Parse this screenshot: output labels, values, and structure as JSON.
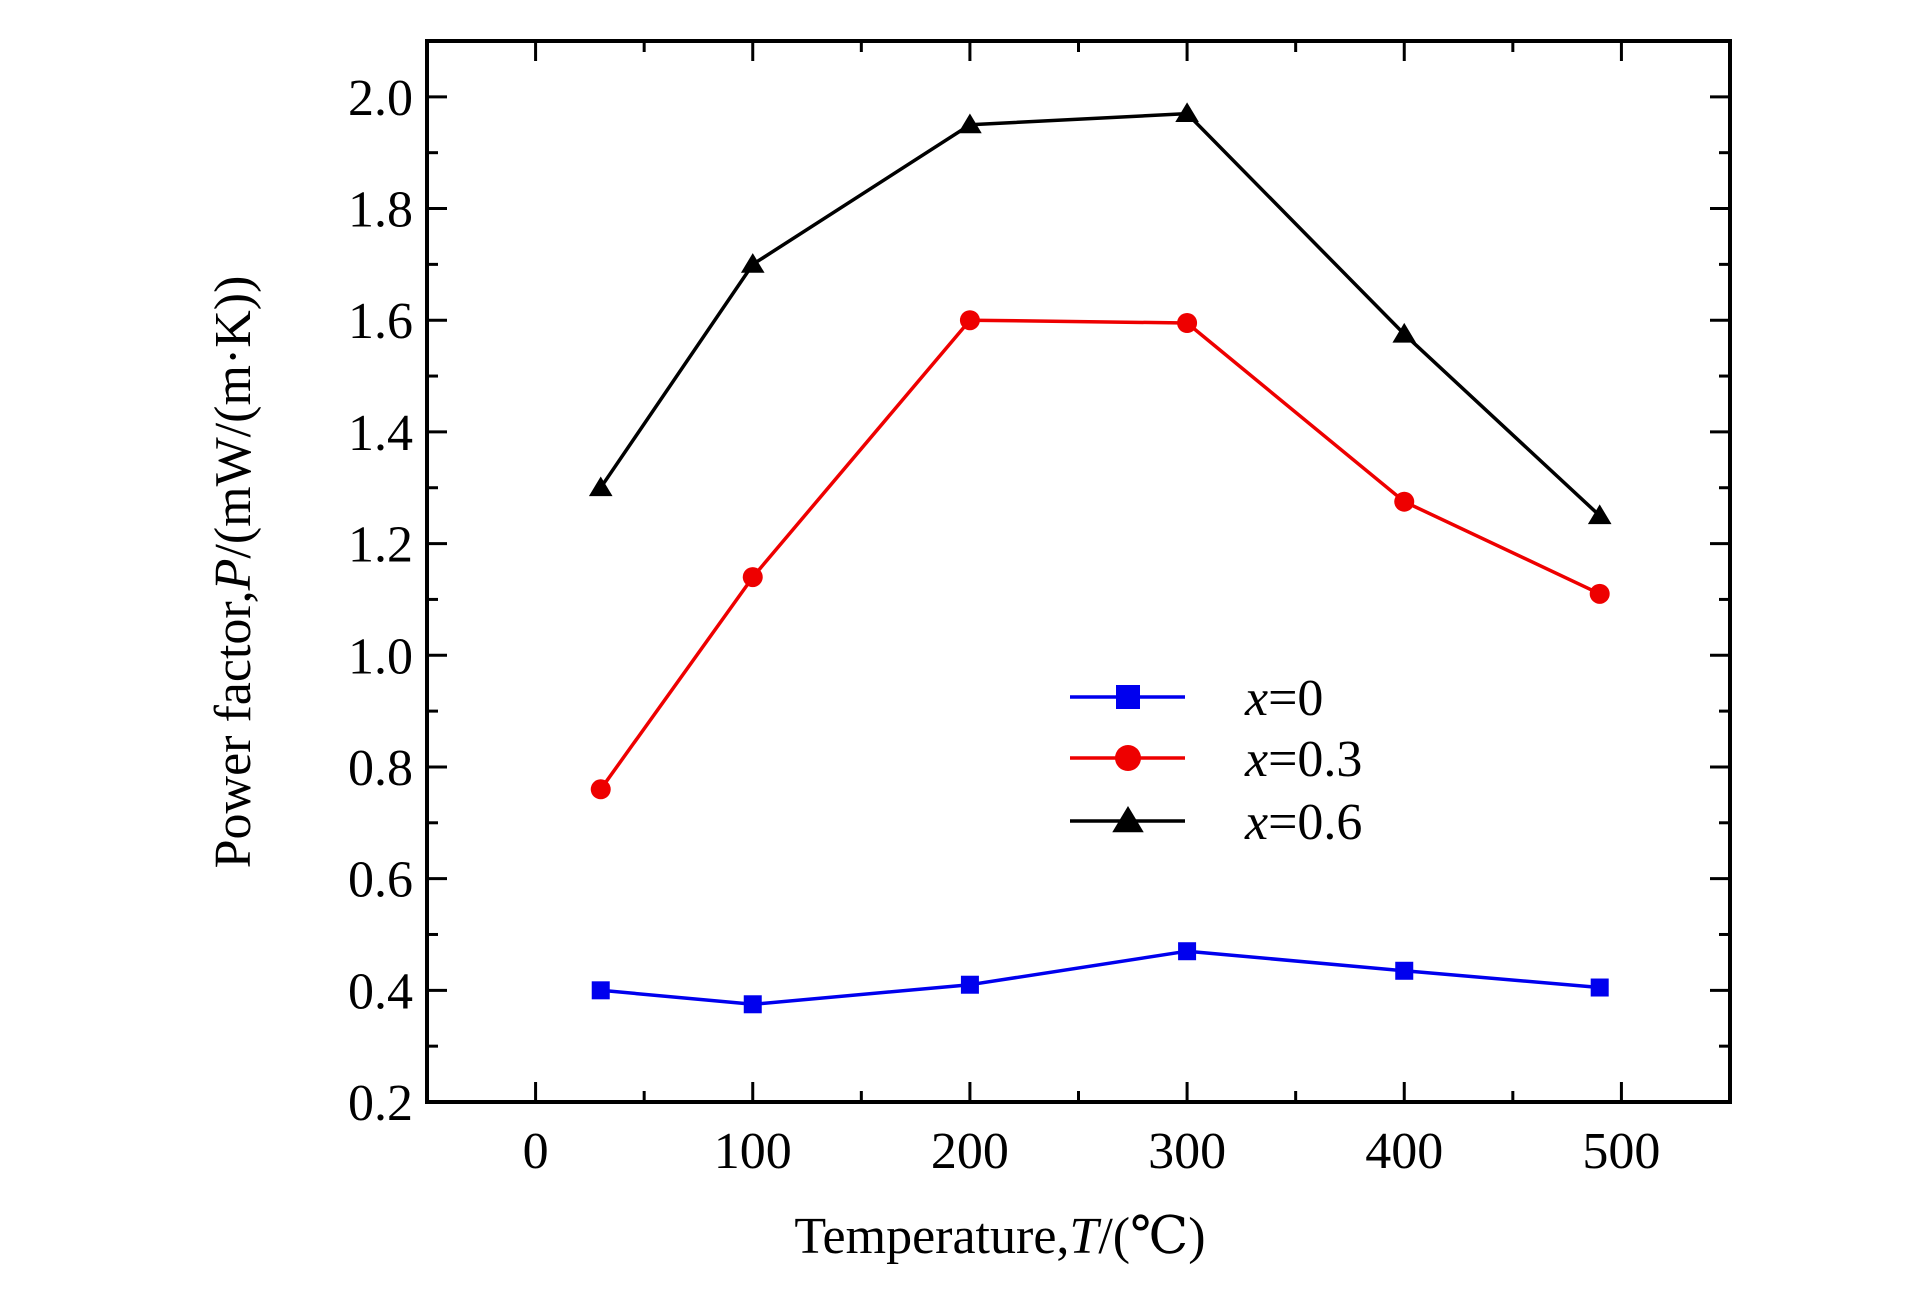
{
  "chart_data": {
    "type": "line",
    "title": "",
    "xlabel_parts": [
      "Temperature,",
      "T",
      "/(℃)"
    ],
    "ylabel_parts": [
      "Power factor,",
      "P",
      "/(mW/(m·K))"
    ],
    "xlim": [
      -50,
      550
    ],
    "ylim": [
      0.2,
      2.1
    ],
    "xticks": [
      0,
      100,
      200,
      300,
      400,
      500
    ],
    "xtick_labels": [
      "0",
      "100",
      "200",
      "300",
      "400",
      "500"
    ],
    "xminor": [
      -50,
      50,
      150,
      250,
      350,
      450,
      550
    ],
    "yticks": [
      0.2,
      0.4,
      0.6,
      0.8,
      1.0,
      1.2,
      1.4,
      1.6,
      1.8,
      2.0
    ],
    "ytick_labels": [
      "0.2",
      "0.4",
      "0.6",
      "0.8",
      "1.0",
      "1.2",
      "1.4",
      "1.6",
      "1.8",
      "2.0"
    ],
    "yminor": [
      0.3,
      0.5,
      0.7,
      0.9,
      1.1,
      1.3,
      1.5,
      1.7,
      1.9
    ],
    "grid": false,
    "legend_position": "center-right",
    "x": [
      30,
      100,
      200,
      300,
      400,
      490
    ],
    "series": [
      {
        "name": "x=0",
        "label_var": "x",
        "label_rest": "=0",
        "color": "#0000ee",
        "marker": "square",
        "values": [
          0.4,
          0.375,
          0.41,
          0.47,
          0.435,
          0.405
        ]
      },
      {
        "name": "x=0.3",
        "label_var": "x",
        "label_rest": "=0.3",
        "color": "#ee0000",
        "marker": "circle",
        "values": [
          0.76,
          1.14,
          1.6,
          1.595,
          1.275,
          1.11
        ]
      },
      {
        "name": "x=0.6",
        "label_var": "x",
        "label_rest": "=0.6",
        "color": "#000000",
        "marker": "triangle",
        "values": [
          1.3,
          1.7,
          1.95,
          1.97,
          1.575,
          1.25
        ]
      }
    ]
  }
}
